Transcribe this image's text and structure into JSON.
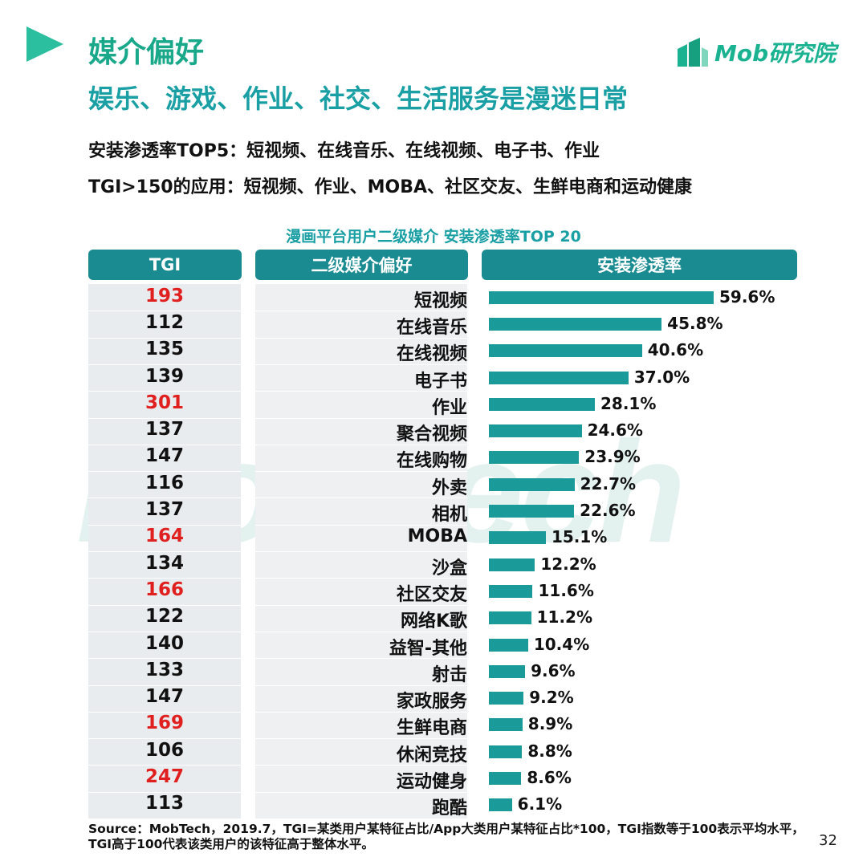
{
  "header": {
    "title": "媒介偏好",
    "subtitle": "娱乐、游戏、作业、社交、生活服务是漫迷日常",
    "line1": "安装渗透率TOP5：短视频、在线音乐、在线视频、电子书、作业",
    "line2": "TGI>150的应用：短视频、作业、MOBA、社区交友、生鲜电商和运动健康",
    "logo_text": "Mob研究院"
  },
  "watermark": "MobTech",
  "colors": {
    "accent": "#2bbf9f",
    "bar": "#1b9a9a",
    "header": "#1b8b92",
    "highlight": "#e0201f",
    "normal": "#111111"
  },
  "chart_data": {
    "type": "bar",
    "title": "漫画平台用户二级媒介 安装渗透率TOP 20",
    "column_headers": {
      "tgi": "TGI",
      "category": "二级媒介偏好",
      "value": "安装渗透率"
    },
    "categories": [
      "短视频",
      "在线音乐",
      "在线视频",
      "电子书",
      "作业",
      "聚合视频",
      "在线购物",
      "外卖",
      "相机",
      "MOBA",
      "沙盒",
      "社区交友",
      "网络K歌",
      "益智-其他",
      "射击",
      "家政服务",
      "生鲜电商",
      "休闲竞技",
      "运动健身",
      "跑酷"
    ],
    "values": [
      59.6,
      45.8,
      40.6,
      37.0,
      28.1,
      24.6,
      23.9,
      22.7,
      22.6,
      15.1,
      12.2,
      11.6,
      11.2,
      10.4,
      9.6,
      9.2,
      8.9,
      8.8,
      8.6,
      6.1
    ],
    "value_labels": [
      "59.6%",
      "45.8%",
      "40.6%",
      "37.0%",
      "28.1%",
      "24.6%",
      "23.9%",
      "22.7%",
      "22.6%",
      "15.1%",
      "12.2%",
      "11.6%",
      "11.2%",
      "10.4%",
      "9.6%",
      "9.2%",
      "8.9%",
      "8.8%",
      "8.6%",
      "6.1%"
    ],
    "tgi": [
      193,
      112,
      135,
      139,
      301,
      137,
      147,
      116,
      137,
      164,
      134,
      166,
      122,
      140,
      133,
      147,
      169,
      106,
      247,
      113
    ],
    "tgi_highlight_threshold": 150,
    "unit": "%"
  },
  "footer": {
    "source": "Source：MobTech，2019.7，TGI=某类用户某特征占比/App大类用户某特征占比*100，TGI指数等于100表示平均水平，TGI高于100代表该类用户的该特征高于整体水平。",
    "page": "32"
  }
}
